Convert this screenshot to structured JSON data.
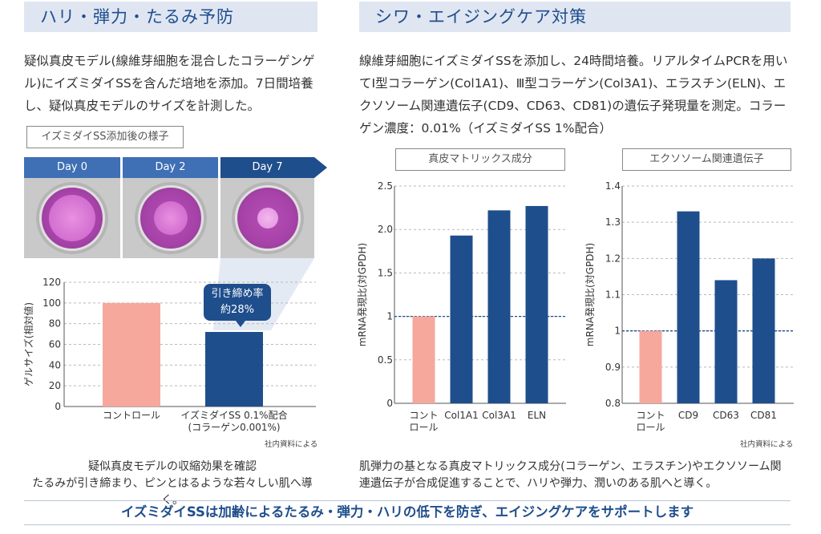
{
  "left": {
    "heading": "ハリ・弾力・たるみ予防",
    "description": "疑似真皮モデル(線維芽細胞を混合したコラーゲンゲル)にイズミダイSSを含んだ培地を添加。7日間培養し、疑似真皮モデルのサイズを計測した。",
    "photo_box_label": "イズミダイSS添加後の様子",
    "days": [
      "Day 0",
      "Day 2",
      "Day 7"
    ],
    "callout_line1": "引き締め率",
    "callout_line2": "約28%",
    "source_note": "社内資料による",
    "caption_line1": "疑似真皮モデルの収縮効果を確認",
    "caption_line2": "たるみが引き締まり、ピンとはるような若々しい肌へ導く。"
  },
  "right": {
    "heading": "シワ・エイジングケア対策",
    "description": "線維芽細胞にイズミダイSSを添加し、24時間培養。リアルタイムPCRを用いてⅠ型コラーゲン(Col1A1)、Ⅲ型コラーゲン(Col3A1)、エラスチン(ELN)、エクソソーム関連遺伝子(CD9、CD63、CD81)の遺伝子発現量を測定。コラーゲン濃度：0.01%（イズミダイSS 1%配合）",
    "source_note": "社内資料による",
    "caption": "肌弾力の基となる真皮マトリックス成分(コラーゲン、エラスチン)やエクソソーム関連遺伝子が合成促進することで、ハリや弾力、潤いのある肌へと導く。"
  },
  "footer": {
    "text": "イズミダイSSは加齢によるたるみ・弾力・ハリの低下を防ぎ、エイジングケアをサポートします"
  },
  "colors": {
    "control": "#f6a89c",
    "treatment": "#1f4e8c",
    "accent": "#1f4e8c"
  },
  "chart_data": [
    {
      "type": "bar",
      "ylabel": "ゲルサイズ(相対値)",
      "ylim": [
        0,
        120
      ],
      "yticks": [
        0,
        20,
        40,
        60,
        80,
        100,
        120
      ],
      "categories": [
        {
          "label": [
            "コントロール"
          ],
          "value": 100,
          "color": "#f6a89c"
        },
        {
          "label": [
            "イズミダイSS 0.1%配合",
            "(コラーゲン0.001%)"
          ],
          "value": 72,
          "color": "#1f4e8c"
        }
      ],
      "grid": true
    },
    {
      "type": "bar",
      "title": "真皮マトリックス成分",
      "ylabel": "mRNA発現比(対GPDH)",
      "ylim": [
        0,
        2.5
      ],
      "yticks": [
        "0",
        "0.5",
        "1",
        "1.5",
        "2.0",
        "2.5"
      ],
      "reference_line": 1,
      "categories": [
        {
          "label": [
            "コント",
            "ロール"
          ],
          "value": 1.0,
          "color": "#f6a89c"
        },
        {
          "label": [
            "Col1A1"
          ],
          "value": 1.93,
          "color": "#1f4e8c"
        },
        {
          "label": [
            "Col3A1"
          ],
          "value": 2.22,
          "color": "#1f4e8c"
        },
        {
          "label": [
            "ELN"
          ],
          "value": 2.27,
          "color": "#1f4e8c"
        }
      ],
      "grid": true
    },
    {
      "type": "bar",
      "title": "エクソソーム関連遺伝子",
      "ylabel": "mRNA発現比(対GPDH)",
      "ylim": [
        0.8,
        1.4
      ],
      "yticks": [
        "0.8",
        "0.9",
        "1",
        "1.1",
        "1.2",
        "1.3",
        "1.4"
      ],
      "reference_line": 1,
      "categories": [
        {
          "label": [
            "コント",
            "ロール"
          ],
          "value": 1.0,
          "color": "#f6a89c"
        },
        {
          "label": [
            "CD9"
          ],
          "value": 1.33,
          "color": "#1f4e8c"
        },
        {
          "label": [
            "CD63"
          ],
          "value": 1.14,
          "color": "#1f4e8c"
        },
        {
          "label": [
            "CD81"
          ],
          "value": 1.2,
          "color": "#1f4e8c"
        }
      ],
      "grid": true
    }
  ]
}
